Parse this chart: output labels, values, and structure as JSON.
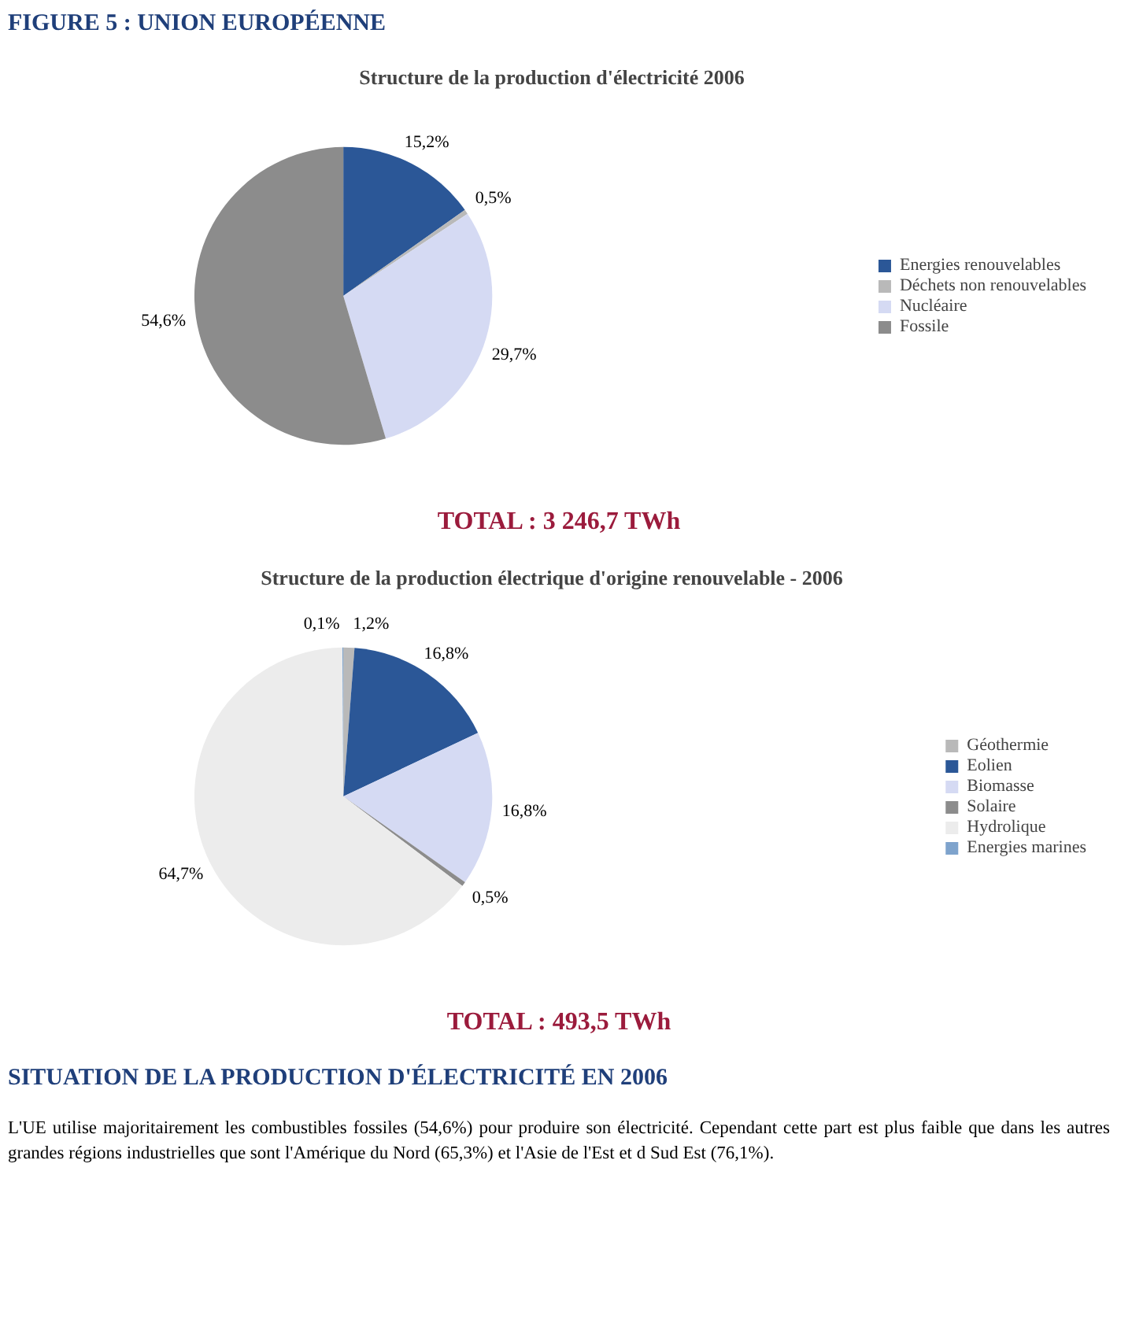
{
  "chart_data": [
    {
      "type": "pie",
      "subtitle": "FIGURE 5 : UNION EUROPÉENNE",
      "title": "Structure de la production d'électricité 2006",
      "categories": [
        "Energies renouvelables",
        "Déchets non renouvelables",
        "Nucléaire",
        "Fossile"
      ],
      "values": [
        15.2,
        0.5,
        29.7,
        54.6
      ],
      "colors": [
        "#2b5797",
        "#b9b9b9",
        "#d5daf3",
        "#8c8c8c"
      ],
      "value_labels": [
        "15,2%",
        "0,5%",
        "29,7%",
        "54,6%"
      ],
      "legend": "right",
      "annotations": [
        "TOTAL : 3 246,7 TWh"
      ]
    },
    {
      "type": "pie",
      "title": "Structure de la production électrique d'origine renouvelable - 2006",
      "categories": [
        "Géothermie",
        "Eolien",
        "Biomasse",
        "Solaire",
        "Hydrolique",
        "Energies marines"
      ],
      "values": [
        1.2,
        16.8,
        16.8,
        0.5,
        64.7,
        0.1
      ],
      "colors": [
        "#b9b9b9",
        "#2b5797",
        "#d5daf3",
        "#8c8c8c",
        "#ececec",
        "#7ea3cc"
      ],
      "value_labels": [
        "1,2%",
        "16,8%",
        "16,8%",
        "0,5%",
        "64,7%",
        "0,1%"
      ],
      "legend": "right",
      "annotations": [
        "TOTAL : 493,5 TWh",
        "SITUATION DE LA PRODUCTION D'ÉLECTRICITÉ EN 2006",
        "L'UE utilise majoritairement les combustibles fossiles (54,6%) pour produire son électricité. Cependant cette part est plus faible que dans les autres grandes régions industrielles que sont l'Amérique du Nord (65,3%) et l'Asie de l'Est et d Sud Est (76,1%)."
      ]
    }
  ]
}
